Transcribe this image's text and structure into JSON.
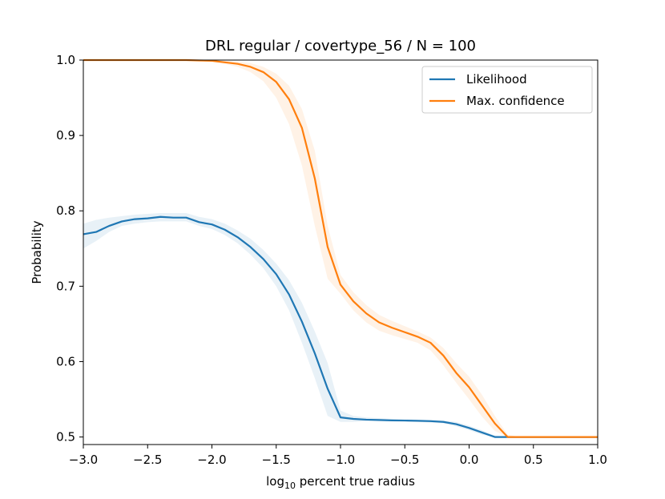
{
  "chart_data": {
    "type": "line",
    "title": "DRL regular / covertype_56 / N = 100",
    "xlabel_main": "log",
    "xlabel_sub": "10",
    "xlabel_rest": " percent true radius",
    "ylabel": "Probability",
    "xlim": [
      -3.0,
      1.0
    ],
    "ylim": [
      0.49,
      1.0
    ],
    "xticks": [
      -3.0,
      -2.5,
      -2.0,
      -1.5,
      -1.0,
      -0.5,
      0.0,
      0.5,
      1.0
    ],
    "xtick_labels": [
      "−3.0",
      "−2.5",
      "−2.0",
      "−1.5",
      "−1.0",
      "−0.5",
      "0.0",
      "0.5",
      "1.0"
    ],
    "yticks": [
      0.5,
      0.6,
      0.7,
      0.8,
      0.9,
      1.0
    ],
    "ytick_labels": [
      "0.5",
      "0.6",
      "0.7",
      "0.8",
      "0.9",
      "1.0"
    ],
    "legend_position": "top-right",
    "series": [
      {
        "name": "Likelihood",
        "color": "#1f77b4",
        "x": [
          -3.0,
          -2.9,
          -2.8,
          -2.7,
          -2.6,
          -2.5,
          -2.4,
          -2.3,
          -2.2,
          -2.1,
          -2.0,
          -1.9,
          -1.8,
          -1.7,
          -1.6,
          -1.5,
          -1.4,
          -1.3,
          -1.2,
          -1.1,
          -1.0,
          -0.9,
          -0.8,
          -0.7,
          -0.6,
          -0.5,
          -0.4,
          -0.3,
          -0.2,
          -0.1,
          0.0,
          0.1,
          0.2,
          0.3,
          0.4,
          0.5,
          0.6,
          0.7,
          0.8,
          0.9,
          1.0
        ],
        "y": [
          0.769,
          0.772,
          0.78,
          0.786,
          0.789,
          0.79,
          0.792,
          0.791,
          0.791,
          0.785,
          0.782,
          0.775,
          0.765,
          0.752,
          0.736,
          0.716,
          0.689,
          0.653,
          0.611,
          0.564,
          0.526,
          0.524,
          0.523,
          0.5225,
          0.522,
          0.5218,
          0.5215,
          0.521,
          0.52,
          0.517,
          0.512,
          0.506,
          0.5,
          0.5,
          0.5,
          0.5,
          0.5,
          0.5,
          0.5,
          0.5,
          0.5
        ],
        "band_lower": [
          0.75,
          0.76,
          0.772,
          0.78,
          0.783,
          0.785,
          0.786,
          0.786,
          0.786,
          0.78,
          0.776,
          0.768,
          0.757,
          0.742,
          0.724,
          0.7,
          0.668,
          0.625,
          0.578,
          0.528,
          0.52,
          0.52,
          0.521,
          0.521,
          0.521,
          0.5205,
          0.52,
          0.519,
          0.518,
          0.514,
          0.509,
          0.503,
          0.5,
          0.5,
          0.5,
          0.5,
          0.5,
          0.5,
          0.5,
          0.5,
          0.5
        ],
        "band_upper": [
          0.783,
          0.788,
          0.791,
          0.793,
          0.795,
          0.796,
          0.797,
          0.797,
          0.797,
          0.792,
          0.789,
          0.783,
          0.774,
          0.763,
          0.748,
          0.73,
          0.708,
          0.678,
          0.64,
          0.598,
          0.535,
          0.528,
          0.526,
          0.525,
          0.524,
          0.5235,
          0.523,
          0.523,
          0.522,
          0.52,
          0.515,
          0.509,
          0.502,
          0.5,
          0.5,
          0.5,
          0.5,
          0.5,
          0.5,
          0.5,
          0.5
        ]
      },
      {
        "name": "Max. confidence",
        "color": "#ff7f0e",
        "x": [
          -3.0,
          -2.9,
          -2.8,
          -2.7,
          -2.6,
          -2.5,
          -2.4,
          -2.3,
          -2.2,
          -2.1,
          -2.0,
          -1.9,
          -1.8,
          -1.7,
          -1.6,
          -1.5,
          -1.4,
          -1.3,
          -1.2,
          -1.1,
          -1.0,
          -0.9,
          -0.8,
          -0.7,
          -0.6,
          -0.5,
          -0.4,
          -0.3,
          -0.2,
          -0.1,
          0.0,
          0.1,
          0.2,
          0.3,
          0.4,
          0.5,
          0.6,
          0.7,
          0.8,
          0.9,
          1.0
        ],
        "y": [
          1.0,
          1.0,
          1.0,
          1.0,
          1.0,
          1.0,
          1.0,
          1.0,
          1.0,
          0.9995,
          0.999,
          0.997,
          0.995,
          0.991,
          0.984,
          0.971,
          0.948,
          0.91,
          0.843,
          0.752,
          0.702,
          0.68,
          0.664,
          0.652,
          0.645,
          0.639,
          0.633,
          0.625,
          0.608,
          0.585,
          0.566,
          0.542,
          0.518,
          0.5,
          0.5,
          0.5,
          0.5,
          0.5,
          0.5,
          0.5,
          0.5
        ],
        "band_lower": [
          1.0,
          1.0,
          1.0,
          1.0,
          1.0,
          1.0,
          1.0,
          1.0,
          1.0,
          0.999,
          0.998,
          0.995,
          0.991,
          0.984,
          0.972,
          0.95,
          0.915,
          0.86,
          0.78,
          0.71,
          0.69,
          0.668,
          0.652,
          0.641,
          0.635,
          0.63,
          0.625,
          0.615,
          0.595,
          0.572,
          0.55,
          0.527,
          0.508,
          0.5,
          0.5,
          0.5,
          0.5,
          0.5,
          0.5,
          0.5,
          0.5
        ],
        "band_upper": [
          1.0,
          1.0,
          1.0,
          1.0,
          1.0,
          1.0,
          1.0,
          1.0,
          1.0,
          1.0,
          1.0,
          0.999,
          0.998,
          0.996,
          0.991,
          0.982,
          0.966,
          0.935,
          0.88,
          0.78,
          0.715,
          0.692,
          0.675,
          0.662,
          0.654,
          0.647,
          0.64,
          0.632,
          0.618,
          0.598,
          0.58,
          0.556,
          0.528,
          0.503,
          0.5,
          0.5,
          0.5,
          0.5,
          0.5,
          0.5,
          0.5
        ]
      }
    ]
  }
}
